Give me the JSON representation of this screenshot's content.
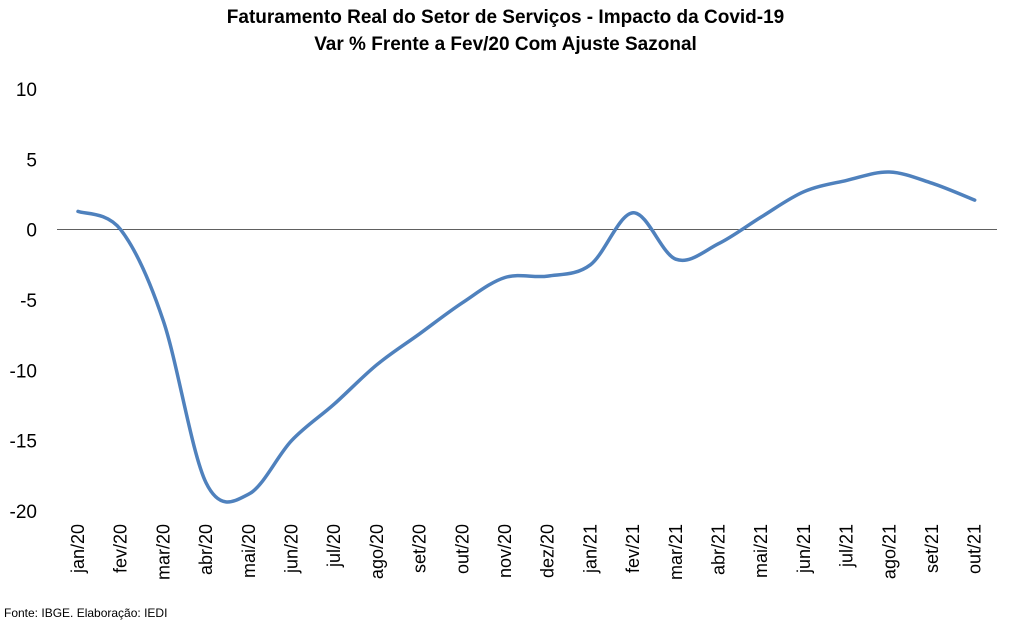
{
  "chart_data": {
    "type": "line",
    "title": "Faturamento Real do Setor de Serviços - Impacto da Covid-19",
    "subtitle": "Var % Frente a Fev/20 Com Ajuste Sazonal",
    "xlabel": "",
    "ylabel": "",
    "ylim": [
      -20,
      10
    ],
    "yticks": [
      "10",
      "5",
      "0",
      "-5",
      "-10",
      "-15",
      "-20"
    ],
    "ytick_values": [
      10,
      5,
      0,
      -5,
      -10,
      -15,
      -20
    ],
    "categories": [
      "jan/20",
      "fev/20",
      "mar/20",
      "abr/20",
      "mai/20",
      "jun/20",
      "jul/20",
      "ago/20",
      "set/20",
      "out/20",
      "nov/20",
      "dez/20",
      "jan/21",
      "fev/21",
      "mar/21",
      "abr/21",
      "mai/21",
      "jun/21",
      "jul/21",
      "ago/21",
      "set/21",
      "out/21"
    ],
    "series": [
      {
        "values": [
          1.3,
          0.0,
          -6.5,
          -18.0,
          -18.8,
          -15.0,
          -12.4,
          -9.6,
          -7.4,
          -5.2,
          -3.4,
          -3.3,
          -2.5,
          1.2,
          -2.1,
          -1.0,
          0.9,
          2.7,
          3.5,
          4.1,
          3.3,
          2.1
        ]
      }
    ],
    "grid": false,
    "zero_line": true,
    "legend": "none",
    "line_color": "#4f81bd"
  },
  "footer": {
    "source": "Fonte: IBGE. Elaboração: IEDI"
  }
}
